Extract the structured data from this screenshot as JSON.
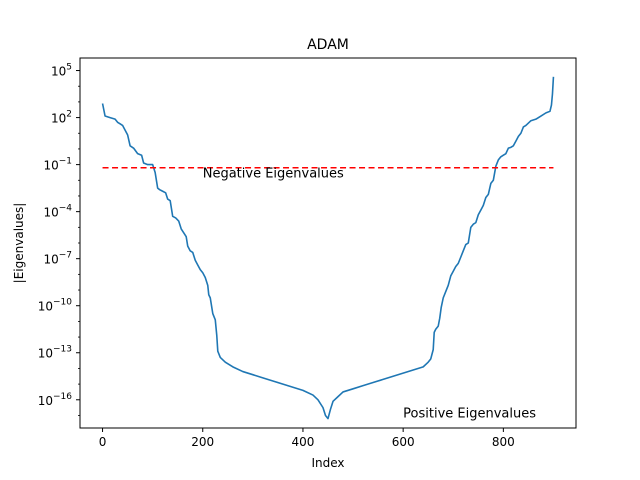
{
  "chart_data": {
    "type": "line",
    "title": "ADAM",
    "xlabel": "Index",
    "ylabel": "|Eigenvalues|",
    "xlim": [
      -45,
      945
    ],
    "ylim_log10": [
      -17.8,
      5.8
    ],
    "y_scale": "log",
    "x_ticks": [
      {
        "value": 0,
        "label": "0"
      },
      {
        "value": 200,
        "label": "200"
      },
      {
        "value": 400,
        "label": "400"
      },
      {
        "value": 600,
        "label": "600"
      },
      {
        "value": 800,
        "label": "800"
      }
    ],
    "y_ticks": [
      {
        "exp": 5,
        "base": "10",
        "sup": "5"
      },
      {
        "exp": 2,
        "base": "10",
        "sup": "2"
      },
      {
        "exp": -1,
        "base": "10",
        "sup": "−1"
      },
      {
        "exp": -4,
        "base": "10",
        "sup": "−4"
      },
      {
        "exp": -7,
        "base": "10",
        "sup": "−7"
      },
      {
        "exp": -10,
        "base": "10",
        "sup": "−10"
      },
      {
        "exp": -13,
        "base": "10",
        "sup": "−13"
      },
      {
        "exp": -16,
        "base": "10",
        "sup": "−16"
      }
    ],
    "series": [
      {
        "color": "#1f77b4",
        "points": [
          [
            0,
            2.9
          ],
          [
            5,
            2.1
          ],
          [
            15,
            2.0
          ],
          [
            25,
            1.9
          ],
          [
            30,
            1.7
          ],
          [
            35,
            1.6
          ],
          [
            40,
            1.5
          ],
          [
            45,
            1.2
          ],
          [
            50,
            0.9
          ],
          [
            55,
            0.2
          ],
          [
            62,
            0.05
          ],
          [
            70,
            -0.3
          ],
          [
            78,
            -0.4
          ],
          [
            82,
            -0.9
          ],
          [
            90,
            -1.0
          ],
          [
            100,
            -1.0
          ],
          [
            105,
            -1.5
          ],
          [
            110,
            -2.5
          ],
          [
            114,
            -2.6
          ],
          [
            120,
            -2.7
          ],
          [
            126,
            -2.8
          ],
          [
            130,
            -3.2
          ],
          [
            135,
            -3.3
          ],
          [
            140,
            -4.3
          ],
          [
            146,
            -4.4
          ],
          [
            152,
            -4.6
          ],
          [
            157,
            -5.1
          ],
          [
            163,
            -5.4
          ],
          [
            167,
            -5.6
          ],
          [
            170,
            -6.2
          ],
          [
            175,
            -6.5
          ],
          [
            180,
            -6.6
          ],
          [
            185,
            -7.1
          ],
          [
            190,
            -7.4
          ],
          [
            195,
            -7.7
          ],
          [
            200,
            -7.9
          ],
          [
            205,
            -8.2
          ],
          [
            210,
            -8.7
          ],
          [
            212,
            -9.3
          ],
          [
            215,
            -9.5
          ],
          [
            220,
            -10.5
          ],
          [
            225,
            -10.9
          ],
          [
            228,
            -11.9
          ],
          [
            230,
            -12.9
          ],
          [
            235,
            -13.3
          ],
          [
            245,
            -13.6
          ],
          [
            260,
            -13.9
          ],
          [
            280,
            -14.2
          ],
          [
            300,
            -14.4
          ],
          [
            320,
            -14.6
          ],
          [
            340,
            -14.8
          ],
          [
            360,
            -15.0
          ],
          [
            380,
            -15.2
          ],
          [
            400,
            -15.4
          ],
          [
            420,
            -15.7
          ],
          [
            430,
            -16.0
          ],
          [
            440,
            -16.5
          ],
          [
            445,
            -17.0
          ],
          [
            450,
            -17.2
          ],
          [
            455,
            -16.6
          ],
          [
            460,
            -16.1
          ],
          [
            470,
            -15.8
          ],
          [
            480,
            -15.5
          ],
          [
            500,
            -15.3
          ],
          [
            520,
            -15.1
          ],
          [
            540,
            -14.9
          ],
          [
            560,
            -14.7
          ],
          [
            580,
            -14.5
          ],
          [
            600,
            -14.3
          ],
          [
            620,
            -14.1
          ],
          [
            640,
            -13.9
          ],
          [
            650,
            -13.6
          ],
          [
            655,
            -13.4
          ],
          [
            660,
            -12.8
          ],
          [
            662,
            -11.7
          ],
          [
            665,
            -11.5
          ],
          [
            670,
            -11.3
          ],
          [
            673,
            -10.8
          ],
          [
            676,
            -10.1
          ],
          [
            680,
            -9.5
          ],
          [
            685,
            -9.1
          ],
          [
            690,
            -8.7
          ],
          [
            695,
            -8.1
          ],
          [
            700,
            -7.8
          ],
          [
            705,
            -7.5
          ],
          [
            710,
            -7.3
          ],
          [
            715,
            -6.9
          ],
          [
            720,
            -6.5
          ],
          [
            725,
            -6.1
          ],
          [
            730,
            -6.0
          ],
          [
            735,
            -5.0
          ],
          [
            740,
            -4.8
          ],
          [
            745,
            -4.7
          ],
          [
            750,
            -4.2
          ],
          [
            755,
            -3.9
          ],
          [
            760,
            -3.6
          ],
          [
            765,
            -3.1
          ],
          [
            770,
            -2.9
          ],
          [
            775,
            -2.2
          ],
          [
            780,
            -2.0
          ],
          [
            785,
            -1.1
          ],
          [
            790,
            -0.7
          ],
          [
            795,
            -0.5
          ],
          [
            800,
            -0.4
          ],
          [
            805,
            -0.3
          ],
          [
            810,
            0.05
          ],
          [
            815,
            0.1
          ],
          [
            820,
            0.2
          ],
          [
            825,
            0.5
          ],
          [
            830,
            0.8
          ],
          [
            835,
            1.0
          ],
          [
            840,
            1.4
          ],
          [
            845,
            1.5
          ],
          [
            855,
            1.8
          ],
          [
            865,
            1.9
          ],
          [
            875,
            2.1
          ],
          [
            885,
            2.3
          ],
          [
            893,
            2.4
          ],
          [
            896,
            2.8
          ],
          [
            898,
            3.5
          ],
          [
            900,
            4.6
          ]
        ]
      }
    ],
    "reference_line": {
      "color": "#ff0000",
      "style": "dashed",
      "y_log10": -1.2,
      "x_range": [
        0,
        900
      ]
    },
    "annotations": [
      {
        "text": "Negative Eigenvalues",
        "x": 200,
        "y_log10": -1.5
      },
      {
        "text": "Positive Eigenvalues",
        "x": 600,
        "y_log10": -16.8
      }
    ]
  }
}
